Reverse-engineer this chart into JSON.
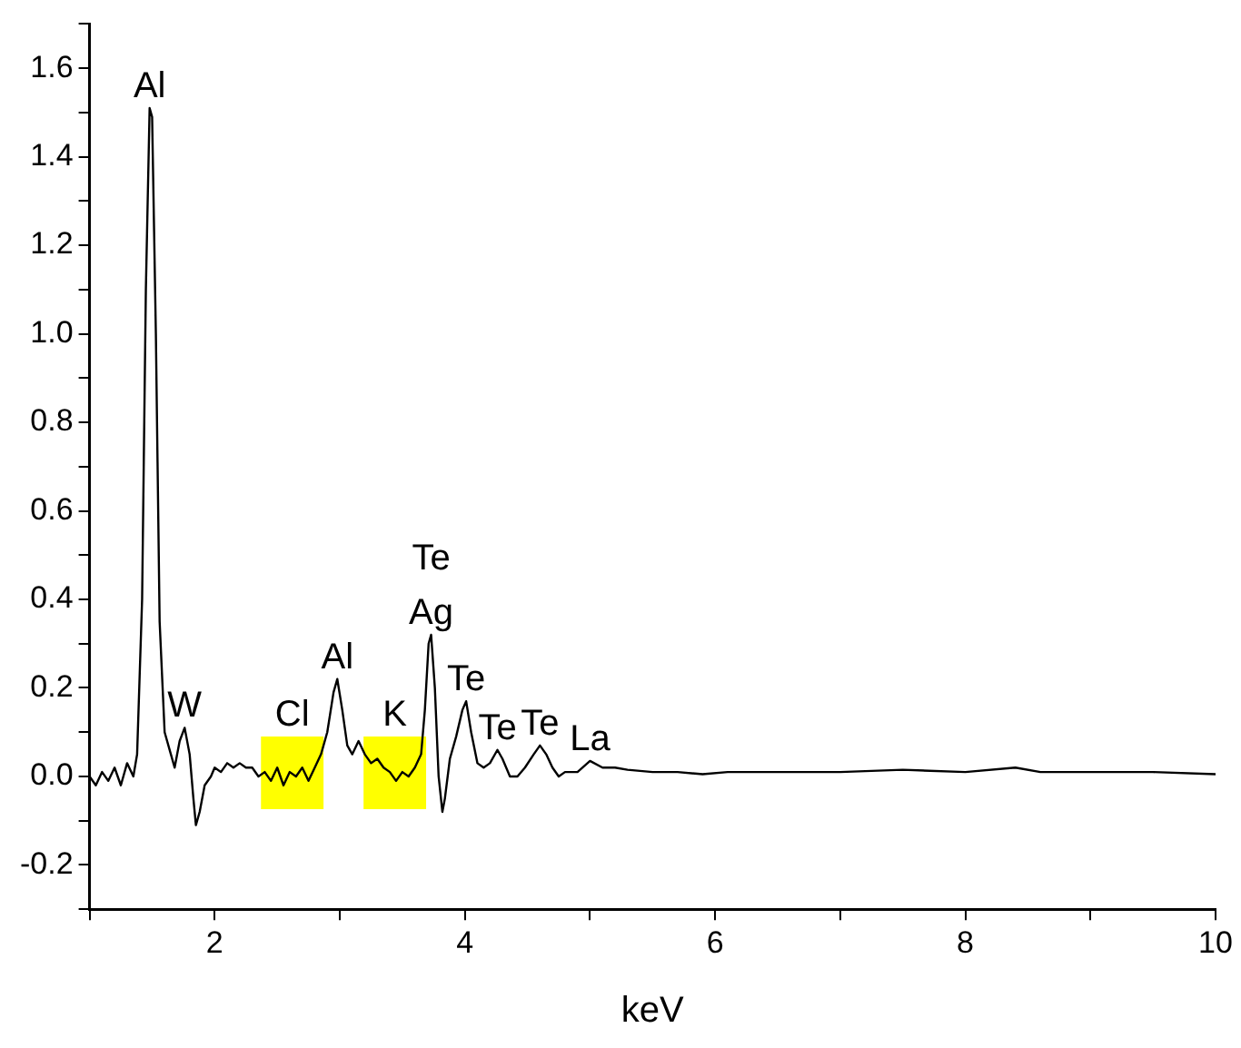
{
  "chart_data": {
    "type": "line",
    "xlabel": "keV",
    "xlim": [
      1,
      10
    ],
    "xticks": [
      {
        "value": 1,
        "label": null
      },
      2,
      {
        "value": 3,
        "label": null
      },
      4,
      {
        "value": 5,
        "label": null
      },
      6,
      {
        "value": 7,
        "label": null
      },
      8,
      {
        "value": 9,
        "label": null
      },
      10
    ],
    "ylim": [
      -0.3,
      1.7
    ],
    "yticks": [
      {
        "value": -0.3,
        "label": null
      },
      -0.2,
      {
        "value": -0.1,
        "label": null
      },
      {
        "value": 0,
        "label": "0.0"
      },
      {
        "value": 0.1,
        "label": null
      },
      0.2,
      {
        "value": 0.3,
        "label": null
      },
      0.4,
      {
        "value": 0.5,
        "label": null
      },
      0.6,
      {
        "value": 0.7,
        "label": null
      },
      0.8,
      {
        "value": 0.9,
        "label": null
      },
      {
        "value": 1,
        "label": "1.0"
      },
      {
        "value": 1.1,
        "label": null
      },
      1.2,
      {
        "value": 1.3,
        "label": null
      },
      1.4,
      {
        "value": 1.5,
        "label": null
      },
      1.6,
      {
        "value": 1.7,
        "label": null
      }
    ],
    "grid": false,
    "legend": false,
    "marker": "none",
    "line_style": "solid",
    "series": [
      {
        "color": "#000000",
        "x": [
          1.0,
          1.05,
          1.1,
          1.15,
          1.2,
          1.25,
          1.3,
          1.35,
          1.38,
          1.42,
          1.45,
          1.48,
          1.5,
          1.53,
          1.56,
          1.6,
          1.65,
          1.68,
          1.72,
          1.76,
          1.8,
          1.83,
          1.85,
          1.88,
          1.92,
          1.97,
          2.0,
          2.05,
          2.1,
          2.15,
          2.2,
          2.25,
          2.3,
          2.35,
          2.4,
          2.45,
          2.5,
          2.55,
          2.6,
          2.65,
          2.7,
          2.75,
          2.8,
          2.85,
          2.9,
          2.95,
          2.98,
          3.02,
          3.06,
          3.1,
          3.15,
          3.2,
          3.25,
          3.3,
          3.35,
          3.4,
          3.45,
          3.5,
          3.55,
          3.6,
          3.65,
          3.68,
          3.71,
          3.73,
          3.76,
          3.79,
          3.82,
          3.84,
          3.88,
          3.93,
          3.98,
          4.01,
          4.05,
          4.1,
          4.15,
          4.2,
          4.26,
          4.3,
          4.36,
          4.42,
          4.48,
          4.55,
          4.6,
          4.65,
          4.7,
          4.75,
          4.8,
          4.9,
          5.0,
          5.1,
          5.2,
          5.3,
          5.5,
          5.7,
          5.9,
          6.1,
          6.5,
          7.0,
          7.5,
          8.0,
          8.4,
          8.6,
          9.0,
          9.5,
          10.0
        ],
        "values": [
          0.0,
          -0.02,
          0.01,
          -0.01,
          0.02,
          -0.02,
          0.03,
          0.0,
          0.05,
          0.4,
          1.1,
          1.51,
          1.49,
          1.0,
          0.35,
          0.1,
          0.05,
          0.02,
          0.08,
          0.11,
          0.05,
          -0.05,
          -0.11,
          -0.08,
          -0.02,
          0.0,
          0.02,
          0.01,
          0.03,
          0.02,
          0.03,
          0.02,
          0.02,
          0.0,
          0.01,
          -0.01,
          0.02,
          -0.02,
          0.01,
          0.0,
          0.02,
          -0.01,
          0.02,
          0.05,
          0.1,
          0.19,
          0.22,
          0.15,
          0.07,
          0.05,
          0.08,
          0.05,
          0.03,
          0.04,
          0.02,
          0.01,
          -0.01,
          0.01,
          0.0,
          0.02,
          0.05,
          0.15,
          0.3,
          0.32,
          0.2,
          0.0,
          -0.08,
          -0.05,
          0.04,
          0.09,
          0.15,
          0.17,
          0.1,
          0.03,
          0.02,
          0.03,
          0.06,
          0.04,
          0.0,
          0.0,
          0.02,
          0.05,
          0.07,
          0.05,
          0.02,
          0.0,
          0.01,
          0.01,
          0.035,
          0.02,
          0.02,
          0.015,
          0.01,
          0.01,
          0.005,
          0.01,
          0.01,
          0.01,
          0.015,
          0.01,
          0.02,
          0.01,
          0.01,
          0.01,
          0.005
        ]
      }
    ],
    "bands": [
      {
        "axis": "x",
        "from": 2.37,
        "to": 2.87,
        "label": "Cl",
        "color": "#ffff00"
      },
      {
        "axis": "x",
        "from": 3.19,
        "to": 3.69,
        "label": "K",
        "color": "#ffff00"
      }
    ],
    "annotations": [
      {
        "text": "Al",
        "x": 1.48,
        "y": 1.51
      },
      {
        "text": "W",
        "x": 1.76,
        "y": 0.11
      },
      {
        "text": "Al",
        "x": 2.98,
        "y": 0.22
      },
      {
        "text": "Ag",
        "x": 3.73,
        "y": 0.32
      },
      {
        "text": "Te",
        "x": 3.73,
        "y": 0.32
      },
      {
        "text": "Te",
        "x": 4.01,
        "y": 0.17
      },
      {
        "text": "Te",
        "x": 4.26,
        "y": 0.06
      },
      {
        "text": "Te",
        "x": 4.6,
        "y": 0.07
      },
      {
        "text": "La",
        "x": 5.0,
        "y": 0.035
      }
    ]
  }
}
